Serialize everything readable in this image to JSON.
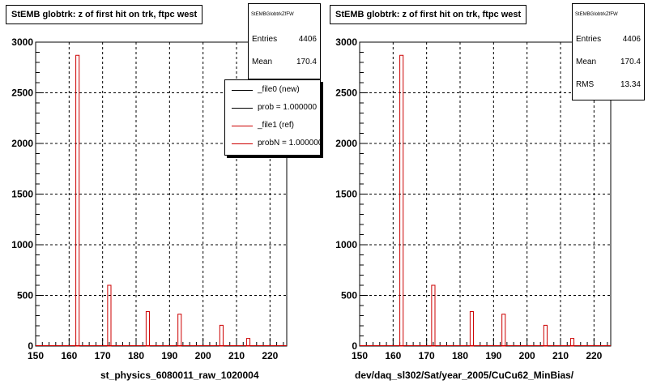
{
  "panels": [
    {
      "title": "StEMB globtrk: z of first hit on trk, ftpc west",
      "stat_name": "StEMBGlobtrkZfFW",
      "stats": [
        {
          "label": "Entries",
          "value": "4406"
        },
        {
          "label": "Mean",
          "value": "170.4"
        }
      ],
      "legend": [
        {
          "label": "_file0 (new)",
          "color": "#000000"
        },
        {
          "label": "prob = 1.000000",
          "color": "#000000"
        },
        {
          "label": "_file1 (ref)",
          "color": "#cc0000"
        },
        {
          "label": "probN = 1.000000",
          "color": "#cc0000"
        }
      ],
      "footer": "st_physics_6080011_raw_1020004"
    },
    {
      "title": "StEMB globtrk: z of first hit on trk, ftpc west",
      "stat_name": "StEMBGlobtrkZfFW",
      "stats": [
        {
          "label": "Entries",
          "value": "4406"
        },
        {
          "label": "Mean",
          "value": "170.4"
        },
        {
          "label": "RMS",
          "value": "13.34"
        }
      ],
      "legend": [],
      "footer": "dev/daq_sl302/Sat/year_2005/CuCu62_MinBias/"
    }
  ],
  "chart_data": [
    {
      "type": "bar",
      "title": "StEMB globtrk: z of first hit on trk, ftpc west",
      "xlim": [
        150,
        225
      ],
      "ylim": [
        0,
        3000
      ],
      "x_ticks": [
        150,
        160,
        170,
        180,
        190,
        200,
        210,
        220
      ],
      "y_ticks": [
        0,
        500,
        1000,
        1500,
        2000,
        2500,
        3000
      ],
      "grid": true,
      "bin_width": 1,
      "series": [
        {
          "color": "#cc0000",
          "x": [
            162.5,
            172,
            183.5,
            193,
            205.5,
            213.5
          ],
          "values": [
            2870,
            600,
            340,
            315,
            205,
            75
          ]
        }
      ]
    },
    {
      "type": "bar",
      "title": "StEMB globtrk: z of first hit on trk, ftpc west",
      "xlim": [
        150,
        225
      ],
      "ylim": [
        0,
        3000
      ],
      "x_ticks": [
        150,
        160,
        170,
        180,
        190,
        200,
        210,
        220
      ],
      "y_ticks": [
        0,
        500,
        1000,
        1500,
        2000,
        2500,
        3000
      ],
      "grid": true,
      "bin_width": 1,
      "series": [
        {
          "color": "#cc0000",
          "x": [
            162.5,
            172,
            183.5,
            193,
            205.5,
            213.5
          ],
          "values": [
            2870,
            600,
            340,
            315,
            205,
            75
          ]
        }
      ]
    }
  ]
}
